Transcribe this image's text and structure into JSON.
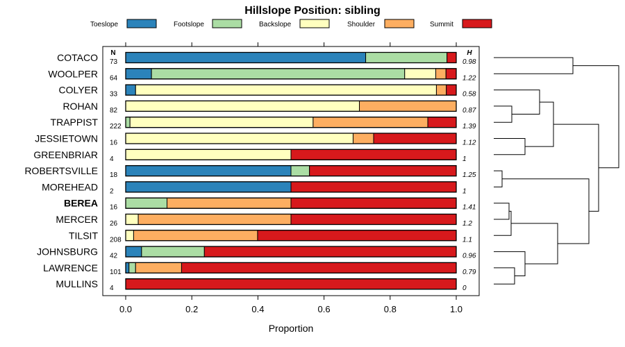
{
  "chart_data": {
    "type": "bar",
    "orientation": "horizontal",
    "stacked": true,
    "title": "Hillslope Position: sibling",
    "xlabel": "Proportion",
    "ylabel": "",
    "xlim": [
      0,
      1
    ],
    "xticks": [
      0.0,
      0.2,
      0.4,
      0.6,
      0.8,
      1.0
    ],
    "xtick_labels": [
      "0.0",
      "0.2",
      "0.4",
      "0.6",
      "0.8",
      "1.0"
    ],
    "n_header": "N",
    "h_header": "H",
    "legend": [
      "Toeslope",
      "Footslope",
      "Backslope",
      "Shoulder",
      "Summit"
    ],
    "colors": [
      "#2b83ba",
      "#abdda4",
      "#ffffbf",
      "#fdae61",
      "#d7191c"
    ],
    "categories": [
      "COTACO",
      "WOOLPER",
      "COLYER",
      "ROHAN",
      "TRAPPIST",
      "JESSIETOWN",
      "GREENBRIAR",
      "ROBERTSVILLE",
      "MOREHEAD",
      "BEREA",
      "MERCER",
      "TILSIT",
      "JOHNSBURG",
      "LAWRENCE",
      "MULLINS"
    ],
    "highlight": "BEREA",
    "n": [
      "73",
      "64",
      "33",
      "82",
      "222",
      "16",
      "4",
      "18",
      "2",
      "16",
      "26",
      "208",
      "42",
      "101",
      "4"
    ],
    "h": [
      "0.98",
      "1.22",
      "0.58",
      "0.87",
      "1.39",
      "1.12",
      "1",
      "1.25",
      "1",
      "1.41",
      "1.2",
      "1.1",
      "0.96",
      "0.79",
      "0"
    ],
    "series": [
      {
        "name": "Toeslope",
        "values": [
          0.726,
          0.078,
          0.03,
          0.0,
          0.0,
          0.0,
          0.0,
          0.5,
          0.5,
          0.0,
          0.0,
          0.0,
          0.048,
          0.01,
          0.0
        ]
      },
      {
        "name": "Footslope",
        "values": [
          0.246,
          0.766,
          0.0,
          0.0,
          0.013,
          0.0,
          0.0,
          0.056,
          0.0,
          0.125,
          0.0,
          0.0,
          0.19,
          0.02,
          0.0
        ]
      },
      {
        "name": "Backslope",
        "values": [
          0.0,
          0.094,
          0.91,
          0.707,
          0.554,
          0.688,
          0.5,
          0.0,
          0.0,
          0.0,
          0.038,
          0.024,
          0.0,
          0.0,
          0.0
        ]
      },
      {
        "name": "Shoulder",
        "values": [
          0.0,
          0.031,
          0.03,
          0.293,
          0.347,
          0.062,
          0.0,
          0.0,
          0.0,
          0.375,
          0.462,
          0.375,
          0.0,
          0.139,
          0.0
        ]
      },
      {
        "name": "Summit",
        "values": [
          0.028,
          0.031,
          0.03,
          0.0,
          0.086,
          0.25,
          0.5,
          0.444,
          0.5,
          0.5,
          0.5,
          0.601,
          0.762,
          0.831,
          1.0
        ]
      }
    ],
    "dendrogram": {
      "type": "hierarchical-clustering",
      "merge_order": [
        [
          "LAWRENCE",
          "MULLINS"
        ],
        [
          "ROBERTSVILLE",
          "MOREHEAD"
        ],
        [
          "ROHAN",
          "TRAPPIST"
        ],
        [
          "BEREA",
          "MERCER"
        ],
        [
          "JESSIETOWN",
          "GREENBRIAR"
        ],
        [
          "{BEREA,MERCER}",
          "TILSIT"
        ],
        [
          "JOHNSBURG",
          "{LAWRENCE,MULLINS}"
        ],
        [
          "COLYER",
          "{ROHAN,TRAPPIST}"
        ],
        [
          "{BEREA,MERCER,TILSIT}",
          "{JOHNSBURG,LAWRENCE,MULLINS}"
        ],
        [
          "{COLYER,ROHAN,TRAPPIST}",
          "{JESSIETOWN,GREENBRIAR}"
        ],
        [
          "COTACO",
          "WOOLPER"
        ],
        [
          "{ROBERTSVILLE,MOREHEAD}",
          "{BEREA,MERCER,TILSIT,JOHNSBURG,LAWRENCE,MULLINS}"
        ],
        [
          "{COLYER..GREENBRIAR}",
          "{ROBERTSVILLE..MULLINS}"
        ],
        [
          "{COTACO,WOOLPER}",
          "{COLYER..MULLINS}"
        ]
      ]
    }
  }
}
